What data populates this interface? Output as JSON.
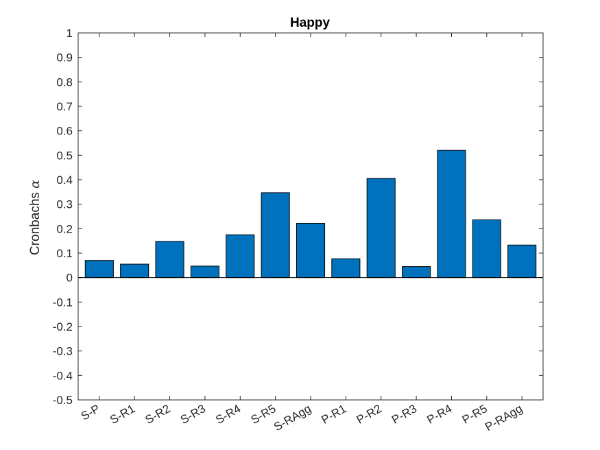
{
  "chart_data": {
    "type": "bar",
    "title": "Happy",
    "xlabel": "",
    "ylabel": "Cronbachs",
    "ylabel_symbol": "α",
    "categories": [
      "S-P",
      "S-R1",
      "S-R2",
      "S-R3",
      "S-R4",
      "S-R5",
      "S-RAgg",
      "P-R1",
      "P-R2",
      "P-R3",
      "P-R4",
      "P-R5",
      "P-RAgg"
    ],
    "values": [
      0.07,
      0.055,
      0.148,
      0.047,
      0.175,
      0.347,
      0.222,
      0.077,
      0.405,
      0.045,
      0.52,
      0.236,
      0.133
    ],
    "ylim": [
      -0.5,
      1
    ],
    "yticks": [
      -0.5,
      -0.4,
      -0.3,
      -0.2,
      -0.1,
      0,
      0.1,
      0.2,
      0.3,
      0.4,
      0.5,
      0.6,
      0.7,
      0.8,
      0.9,
      1
    ],
    "ytick_labels": [
      "-0.5",
      "-0.4",
      "-0.3",
      "-0.2",
      "-0.1",
      "0",
      "0.1",
      "0.2",
      "0.3",
      "0.4",
      "0.5",
      "0.6",
      "0.7",
      "0.8",
      "0.9",
      "1"
    ],
    "grid": false,
    "bar_color": "#0072BD",
    "edge_color": "#000000"
  }
}
